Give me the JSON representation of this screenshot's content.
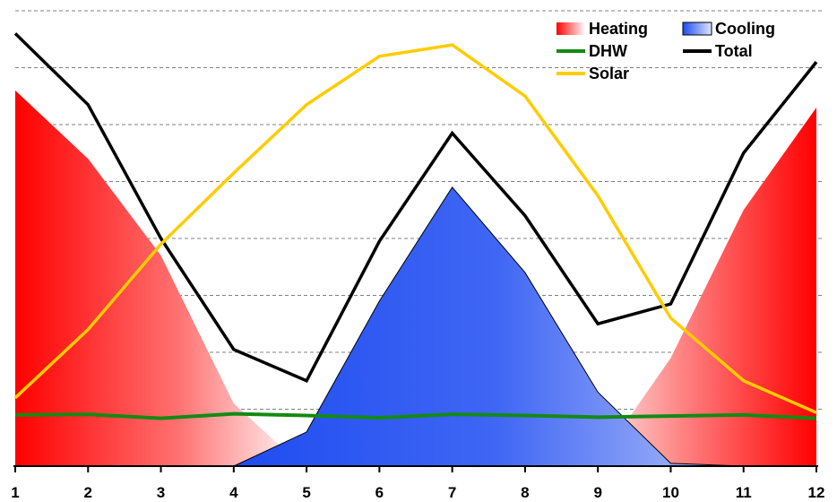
{
  "chart_data": {
    "type": "area",
    "x": [
      1,
      2,
      3,
      4,
      5,
      6,
      7,
      8,
      9,
      10,
      11,
      12
    ],
    "xticks": [
      "1",
      "2",
      "3",
      "4",
      "5",
      "6",
      "7",
      "8",
      "9",
      "10",
      "11",
      "12"
    ],
    "ylim": [
      0,
      8
    ],
    "grid": true,
    "legend_position": "top-right",
    "series": [
      {
        "name": "Heating",
        "kind": "area",
        "color": "#ff0000",
        "points": [
          [
            1,
            6.6
          ],
          [
            2,
            5.4
          ],
          [
            3,
            3.7
          ],
          [
            4,
            1.1
          ],
          [
            4.6,
            0.4
          ],
          [
            9.4,
            0.8
          ],
          [
            10,
            1.9
          ],
          [
            11,
            4.5
          ],
          [
            12,
            6.3
          ]
        ]
      },
      {
        "name": "Cooling",
        "kind": "area",
        "color": "#1f4cf0",
        "points": [
          [
            4,
            0
          ],
          [
            5,
            0.6
          ],
          [
            6,
            2.9
          ],
          [
            7,
            4.9
          ],
          [
            8,
            3.4
          ],
          [
            9,
            1.3
          ],
          [
            10,
            0.05
          ],
          [
            11,
            0
          ],
          [
            12,
            0
          ]
        ]
      },
      {
        "name": "DHW",
        "kind": "line",
        "color": "#138a13",
        "values": [
          0.9,
          0.91,
          0.84,
          0.92,
          0.89,
          0.85,
          0.91,
          0.89,
          0.86,
          0.88,
          0.9,
          0.84
        ]
      },
      {
        "name": "Total",
        "kind": "line",
        "color": "#000000",
        "values": [
          7.6,
          6.35,
          4.0,
          2.05,
          1.5,
          3.95,
          5.85,
          4.4,
          2.5,
          2.85,
          5.5,
          7.1
        ]
      },
      {
        "name": "Solar",
        "kind": "line",
        "color": "#ffcc00",
        "values": [
          1.2,
          2.4,
          3.9,
          5.15,
          6.35,
          7.2,
          7.4,
          6.5,
          4.75,
          2.6,
          1.5,
          0.94
        ]
      }
    ],
    "legend": [
      {
        "label": "Heating",
        "swatch": "gradient-red"
      },
      {
        "label": "Cooling",
        "swatch": "gradient-blue"
      },
      {
        "label": "DHW",
        "swatch": "line-green"
      },
      {
        "label": "Total",
        "swatch": "line-black"
      },
      {
        "label": "Solar",
        "swatch": "line-yellow"
      }
    ]
  }
}
